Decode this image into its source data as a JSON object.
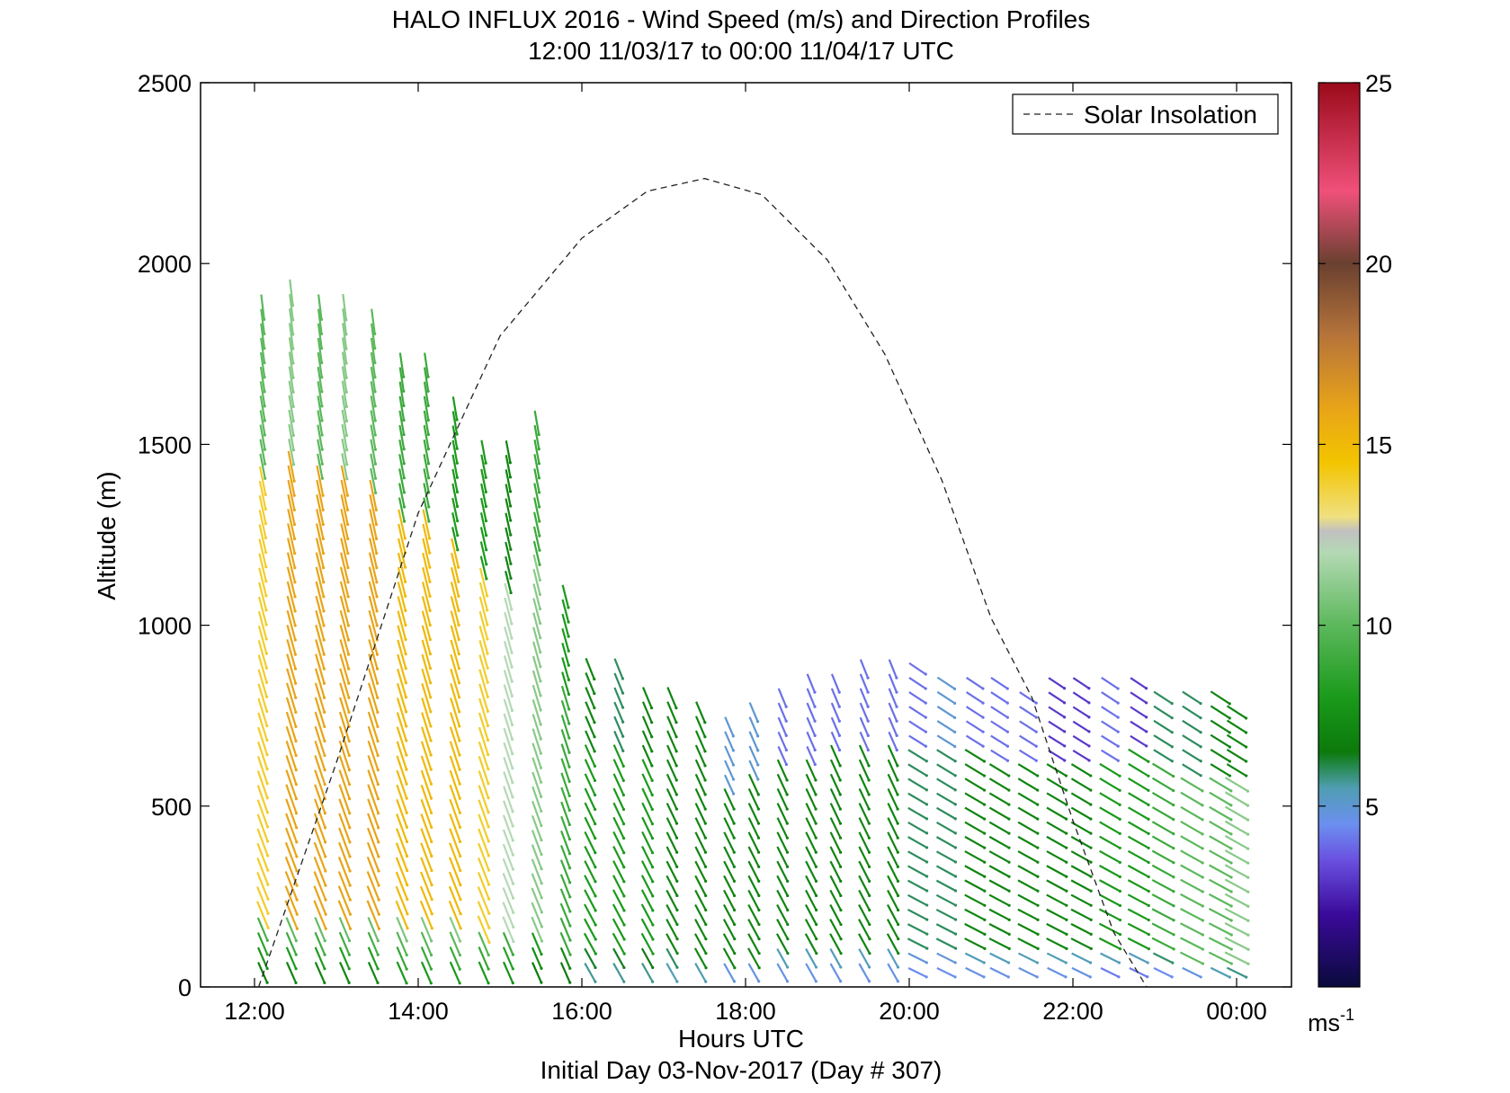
{
  "chart_data": {
    "type": "wind-barb-profile",
    "title": "HALO INFLUX 2016 - Wind Speed (m/s) and Direction Profiles",
    "subtitle": "12:00 11/03/17 to 00:00 11/04/17  UTC",
    "xlabel": "Hours UTC",
    "xlabel2": "Initial Day 03-Nov-2017 (Day # 307)",
    "ylabel": "Altitude (m)",
    "xlim": [
      12,
      24.3
    ],
    "ylim": [
      0,
      2500
    ],
    "x_tick_values": [
      12,
      14,
      16,
      18,
      20,
      22,
      24
    ],
    "x_tick_labels": [
      "12:00",
      "14:00",
      "16:00",
      "18:00",
      "20:00",
      "22:00",
      "00:00"
    ],
    "y_ticks": [
      0,
      500,
      1000,
      1500,
      2000,
      2500
    ],
    "legend": {
      "label": "Solar Insolation",
      "placement": "top-right"
    },
    "colorbar": {
      "ticks": [
        5,
        10,
        15,
        20,
        25
      ],
      "range": [
        0,
        25
      ],
      "unit_label": "ms",
      "unit_exponent": "-1"
    },
    "solar_insolation_curve": {
      "style": "dashed",
      "x": [
        12.05,
        13.0,
        14.0,
        15.0,
        16.0,
        16.8,
        17.5,
        18.2,
        19.0,
        19.7,
        20.4,
        21.0,
        21.5,
        22.0,
        22.5,
        22.9
      ],
      "y": [
        0,
        620,
        1310,
        1800,
        2070,
        2200,
        2235,
        2190,
        2010,
        1750,
        1400,
        1020,
        800,
        460,
        150,
        0
      ]
    },
    "wind_profiles": [
      {
        "time": 12.1,
        "speed_top": 10,
        "speed_mid": 14,
        "speed_bottom": 6,
        "max_alt": 1900
      },
      {
        "time": 12.45,
        "speed_top": 11,
        "speed_mid": 16,
        "speed_bottom": 6,
        "max_alt": 1950
      },
      {
        "time": 12.8,
        "speed_top": 10,
        "speed_mid": 16,
        "speed_bottom": 6,
        "max_alt": 1900
      },
      {
        "time": 13.1,
        "speed_top": 11,
        "speed_mid": 16,
        "speed_bottom": 6,
        "max_alt": 1880
      },
      {
        "time": 13.45,
        "speed_top": 10,
        "speed_mid": 16,
        "speed_bottom": 6,
        "max_alt": 1850
      },
      {
        "time": 13.8,
        "speed_top": 9,
        "speed_mid": 15,
        "speed_bottom": 7,
        "max_alt": 1720
      },
      {
        "time": 14.1,
        "speed_top": 9,
        "speed_mid": 15,
        "speed_bottom": 7,
        "max_alt": 1720
      },
      {
        "time": 14.45,
        "speed_top": 8,
        "speed_mid": 15,
        "speed_bottom": 7,
        "max_alt": 1620
      },
      {
        "time": 14.8,
        "speed_top": 8,
        "speed_mid": 14,
        "speed_bottom": 7,
        "max_alt": 1500
      },
      {
        "time": 15.1,
        "speed_top": 7,
        "speed_mid": 12,
        "speed_bottom": 7,
        "max_alt": 1490
      },
      {
        "time": 15.45,
        "speed_top": 9,
        "speed_mid": 11,
        "speed_bottom": 6,
        "max_alt": 1560
      },
      {
        "time": 15.8,
        "speed_top": 8,
        "speed_mid": 9,
        "speed_bottom": 6,
        "max_alt": 1100
      },
      {
        "time": 16.1,
        "speed_top": 7,
        "speed_mid": 8,
        "speed_bottom": 5,
        "max_alt": 900
      },
      {
        "time": 16.45,
        "speed_top": 6,
        "speed_mid": 8,
        "speed_bottom": 5,
        "max_alt": 880
      },
      {
        "time": 16.8,
        "speed_top": 7,
        "speed_mid": 8,
        "speed_bottom": 5,
        "max_alt": 820
      },
      {
        "time": 17.1,
        "speed_top": 7,
        "speed_mid": 7,
        "speed_bottom": 5,
        "max_alt": 820
      },
      {
        "time": 17.45,
        "speed_top": 7,
        "speed_mid": 7,
        "speed_bottom": 5,
        "max_alt": 760
      },
      {
        "time": 17.8,
        "speed_top": 5,
        "speed_mid": 7,
        "speed_bottom": 4,
        "max_alt": 740
      },
      {
        "time": 18.1,
        "speed_top": 5,
        "speed_mid": 7,
        "speed_bottom": 4,
        "max_alt": 790
      },
      {
        "time": 18.45,
        "speed_top": 4,
        "speed_mid": 7,
        "speed_bottom": 4,
        "max_alt": 830
      },
      {
        "time": 18.8,
        "speed_top": 4,
        "speed_mid": 7,
        "speed_bottom": 4,
        "max_alt": 840
      },
      {
        "time": 19.1,
        "speed_top": 4,
        "speed_mid": 7,
        "speed_bottom": 4,
        "max_alt": 860
      },
      {
        "time": 19.45,
        "speed_top": 4,
        "speed_mid": 7,
        "speed_bottom": 4,
        "max_alt": 880
      },
      {
        "time": 19.8,
        "speed_top": 4,
        "speed_mid": 7,
        "speed_bottom": 4,
        "max_alt": 900
      },
      {
        "time": 20.1,
        "speed_top": 4,
        "speed_mid": 6,
        "speed_bottom": 4,
        "max_alt": 900
      },
      {
        "time": 20.45,
        "speed_top": 5,
        "speed_mid": 6,
        "speed_bottom": 4,
        "max_alt": 860
      },
      {
        "time": 20.8,
        "speed_top": 4,
        "speed_mid": 7,
        "speed_bottom": 4,
        "max_alt": 860
      },
      {
        "time": 21.1,
        "speed_top": 4,
        "speed_mid": 7,
        "speed_bottom": 4,
        "max_alt": 850
      },
      {
        "time": 21.45,
        "speed_top": 4,
        "speed_mid": 7,
        "speed_bottom": 4,
        "max_alt": 830
      },
      {
        "time": 21.8,
        "speed_top": 3,
        "speed_mid": 7,
        "speed_bottom": 4,
        "max_alt": 840
      },
      {
        "time": 22.1,
        "speed_top": 3,
        "speed_mid": 7,
        "speed_bottom": 4,
        "max_alt": 850
      },
      {
        "time": 22.45,
        "speed_top": 4,
        "speed_mid": 8,
        "speed_bottom": 3,
        "max_alt": 850
      },
      {
        "time": 22.8,
        "speed_top": 3,
        "speed_mid": 8,
        "speed_bottom": 3,
        "max_alt": 870
      },
      {
        "time": 23.1,
        "speed_top": 6,
        "speed_mid": 9,
        "speed_bottom": 3,
        "max_alt": 820
      },
      {
        "time": 23.45,
        "speed_top": 6,
        "speed_mid": 10,
        "speed_bottom": 3,
        "max_alt": 800
      },
      {
        "time": 23.8,
        "speed_top": 7,
        "speed_mid": 10,
        "speed_bottom": 4,
        "max_alt": 800
      },
      {
        "time": 24.0,
        "speed_top": 7,
        "speed_mid": 11,
        "speed_bottom": 4,
        "max_alt": 790
      }
    ]
  }
}
